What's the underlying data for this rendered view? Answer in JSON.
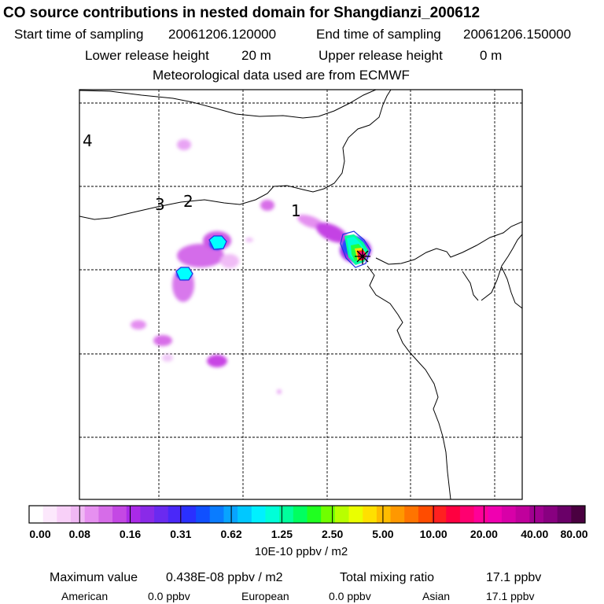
{
  "title": "CO  source contributions in nested domain for Shangdianzi_200612",
  "sampling": {
    "start_label": "Start time of sampling",
    "start_value": "20061206.120000",
    "end_label": "End time of sampling",
    "end_value": "20061206.150000"
  },
  "release": {
    "lower_label": "Lower release height",
    "lower_value": "20 m",
    "upper_label": "Upper release height",
    "upper_value": "0 m"
  },
  "meteo": "Meteorological data used are from ECMWF",
  "map": {
    "region_labels": [
      "4",
      "3",
      "2",
      "1"
    ],
    "receptor_marker": "star-icon"
  },
  "colorbar": {
    "colors": [
      "#ffffff",
      "#fce8fc",
      "#f8d0f8",
      "#f0b8f4",
      "#e690f0",
      "#d66ce8",
      "#c448e4",
      "#aa2ae8",
      "#8a2ae8",
      "#6a2af0",
      "#4a28f8",
      "#2a30ff",
      "#1050ff",
      "#0a7cff",
      "#08a4ff",
      "#00c8ff",
      "#00f0ff",
      "#00ffd8",
      "#00ff9c",
      "#00ff60",
      "#20ff20",
      "#70ff00",
      "#b8ff00",
      "#eaff00",
      "#ffe000",
      "#ffbc00",
      "#ff9800",
      "#ff7400",
      "#ff4c00",
      "#ff2020",
      "#ff0040",
      "#ff0070",
      "#ff0098",
      "#f000b0",
      "#d800a8",
      "#c0009c",
      "#a00090",
      "#880080",
      "#6a0068",
      "#4a0040"
    ],
    "tick_labels": [
      "0.00",
      "0.08",
      "0.16",
      "0.31",
      "0.62",
      "1.25",
      "2.50",
      "5.00",
      "10.00",
      "20.00",
      "40.00",
      "80.00"
    ],
    "units": "10E-10 ppbv / m2"
  },
  "footer": {
    "max_label": "Maximum value",
    "max_value": "0.438E-08 ppbv / m2",
    "total_label": "Total mixing ratio",
    "total_value": "17.1 ppbv",
    "american_label": "American",
    "american_value": "0.0 ppbv",
    "european_label": "European",
    "european_value": "0.0 ppbv",
    "asian_label": "Asian",
    "asian_value": "17.1 ppbv"
  }
}
